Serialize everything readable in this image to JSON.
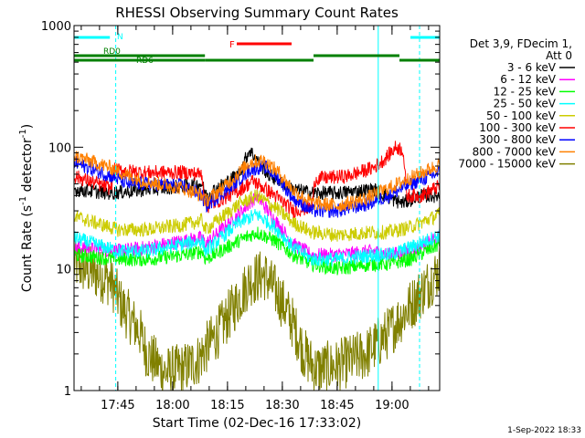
{
  "chart_data": {
    "type": "line",
    "title": "RHESSI Observing Summary Count Rates",
    "xlabel": "Start Time (02-Dec-16 17:33:02)",
    "ylabel_main": "Count Rate (s",
    "ylabel_sup1": "-1",
    "ylabel_mid": " detector",
    "ylabel_sup2": "-1",
    "ylabel_end": ")",
    "yscale": "log",
    "ylim": [
      1,
      1000
    ],
    "xlim_minutes": [
      0,
      100
    ],
    "yticks": [
      {
        "value": 1,
        "label": "1"
      },
      {
        "value": 10,
        "label": "10"
      },
      {
        "value": 100,
        "label": "100"
      },
      {
        "value": 1000,
        "label": "1000"
      }
    ],
    "xticks": [
      {
        "minute": 11.97,
        "label": "17:45"
      },
      {
        "minute": 26.97,
        "label": "18:00"
      },
      {
        "minute": 41.97,
        "label": "18:15"
      },
      {
        "minute": 56.97,
        "label": "18:30"
      },
      {
        "minute": 71.97,
        "label": "18:45"
      },
      {
        "minute": 86.97,
        "label": "19:00"
      }
    ],
    "legend_header": [
      "Det 3,9, FDecim 1,",
      "Att 0"
    ],
    "series": [
      {
        "name": "3 - 6 keV",
        "color": "#000000",
        "profile": [
          [
            0,
            45
          ],
          [
            10,
            42
          ],
          [
            20,
            45
          ],
          [
            30,
            48
          ],
          [
            35,
            50
          ],
          [
            36,
            40
          ],
          [
            45,
            60
          ],
          [
            48,
            95
          ],
          [
            53,
            60
          ],
          [
            60,
            45
          ],
          [
            65,
            42
          ],
          [
            72,
            42
          ],
          [
            82,
            45
          ],
          [
            85,
            40
          ],
          [
            88,
            36
          ],
          [
            90,
            35
          ],
          [
            95,
            40
          ],
          [
            100,
            40
          ]
        ]
      },
      {
        "name": "6 - 12 keV",
        "color": "#ff00ff",
        "profile": [
          [
            0,
            15
          ],
          [
            12,
            14
          ],
          [
            20,
            15
          ],
          [
            30,
            17
          ],
          [
            35,
            18
          ],
          [
            36,
            16
          ],
          [
            45,
            28
          ],
          [
            50,
            40
          ],
          [
            55,
            25
          ],
          [
            60,
            16
          ],
          [
            65,
            13
          ],
          [
            72,
            13
          ],
          [
            82,
            14
          ],
          [
            86,
            13
          ],
          [
            92,
            14
          ],
          [
            100,
            18
          ]
        ]
      },
      {
        "name": "12 - 25 keV",
        "color": "#00ff00",
        "profile": [
          [
            0,
            13
          ],
          [
            12,
            12
          ],
          [
            20,
            12
          ],
          [
            30,
            13
          ],
          [
            35,
            14
          ],
          [
            36,
            12
          ],
          [
            45,
            17
          ],
          [
            50,
            20
          ],
          [
            55,
            17
          ],
          [
            60,
            13
          ],
          [
            65,
            11
          ],
          [
            72,
            10
          ],
          [
            82,
            11
          ],
          [
            86,
            11
          ],
          [
            92,
            12
          ],
          [
            100,
            16
          ]
        ]
      },
      {
        "name": "25 - 50 keV",
        "color": "#00ffff",
        "profile": [
          [
            0,
            18
          ],
          [
            12,
            14
          ],
          [
            20,
            14
          ],
          [
            30,
            16
          ],
          [
            35,
            17
          ],
          [
            36,
            14
          ],
          [
            45,
            24
          ],
          [
            50,
            28
          ],
          [
            55,
            22
          ],
          [
            60,
            15
          ],
          [
            65,
            12
          ],
          [
            72,
            12
          ],
          [
            82,
            13
          ],
          [
            86,
            13
          ],
          [
            92,
            15
          ],
          [
            100,
            19
          ]
        ]
      },
      {
        "name": "50 - 100 keV",
        "color": "#cccc00",
        "profile": [
          [
            0,
            27
          ],
          [
            12,
            21
          ],
          [
            20,
            21
          ],
          [
            30,
            23
          ],
          [
            35,
            25
          ],
          [
            36,
            21
          ],
          [
            45,
            34
          ],
          [
            50,
            40
          ],
          [
            55,
            32
          ],
          [
            60,
            24
          ],
          [
            65,
            20
          ],
          [
            72,
            19
          ],
          [
            82,
            20
          ],
          [
            86,
            20
          ],
          [
            92,
            22
          ],
          [
            100,
            28
          ]
        ]
      },
      {
        "name": "100 - 300 keV",
        "color": "#ff0000",
        "profile": [
          [
            0,
            58
          ],
          [
            10,
            46
          ],
          [
            11,
            65
          ],
          [
            20,
            62
          ],
          [
            30,
            62
          ],
          [
            35,
            60
          ],
          [
            36,
            32
          ],
          [
            45,
            44
          ],
          [
            49,
            53
          ],
          [
            55,
            40
          ],
          [
            60,
            30
          ],
          [
            65,
            32
          ],
          [
            66,
            55
          ],
          [
            75,
            58
          ],
          [
            82,
            68
          ],
          [
            85,
            80
          ],
          [
            88,
            100
          ],
          [
            90,
            95
          ],
          [
            91,
            40
          ],
          [
            95,
            40
          ],
          [
            100,
            48
          ]
        ]
      },
      {
        "name": "300 - 800 keV",
        "color": "#0000ff",
        "profile": [
          [
            0,
            75
          ],
          [
            10,
            58
          ],
          [
            15,
            50
          ],
          [
            20,
            50
          ],
          [
            30,
            48
          ],
          [
            35,
            40
          ],
          [
            36,
            33
          ],
          [
            42,
            45
          ],
          [
            48,
            65
          ],
          [
            52,
            70
          ],
          [
            56,
            55
          ],
          [
            60,
            38
          ],
          [
            65,
            30
          ],
          [
            72,
            30
          ],
          [
            80,
            34
          ],
          [
            86,
            40
          ],
          [
            92,
            50
          ],
          [
            100,
            62
          ]
        ]
      },
      {
        "name": "800 - 7000 keV",
        "color": "#ff8000",
        "profile": [
          [
            0,
            85
          ],
          [
            10,
            68
          ],
          [
            15,
            58
          ],
          [
            20,
            52
          ],
          [
            30,
            46
          ],
          [
            35,
            40
          ],
          [
            36,
            36
          ],
          [
            42,
            50
          ],
          [
            48,
            75
          ],
          [
            52,
            78
          ],
          [
            56,
            62
          ],
          [
            60,
            44
          ],
          [
            65,
            35
          ],
          [
            72,
            33
          ],
          [
            80,
            38
          ],
          [
            86,
            46
          ],
          [
            92,
            56
          ],
          [
            100,
            72
          ]
        ]
      },
      {
        "name": "7000 - 15000 keV",
        "color": "#808000",
        "profile": [
          [
            0,
            11
          ],
          [
            10,
            8
          ],
          [
            13,
            5
          ],
          [
            18,
            3
          ],
          [
            20,
            2
          ],
          [
            25,
            1.4
          ],
          [
            30,
            1.5
          ],
          [
            34,
            1.8
          ],
          [
            36,
            2.2
          ],
          [
            40,
            3.2
          ],
          [
            44,
            5
          ],
          [
            48,
            8
          ],
          [
            52,
            9
          ],
          [
            56,
            6
          ],
          [
            60,
            3.5
          ],
          [
            63,
            2
          ],
          [
            66,
            1.5
          ],
          [
            72,
            1.6
          ],
          [
            80,
            2
          ],
          [
            86,
            3
          ],
          [
            92,
            5
          ],
          [
            96,
            7
          ],
          [
            100,
            10
          ]
        ]
      }
    ],
    "attenuator_cyan_segments": [
      [
        0,
        9.8
      ],
      [
        92,
        100
      ]
    ],
    "cyan_marker_labels": [
      {
        "minute": 11,
        "label": "N"
      }
    ],
    "flare_segment": {
      "range": [
        44.5,
        59.5
      ],
      "label": "F",
      "label_minute": 42.5
    },
    "rd_segments": [
      {
        "row": 1,
        "ranges": [
          [
            0,
            35.8
          ],
          [
            65.5,
            89
          ]
        ]
      },
      {
        "row": 1,
        "ranges": [
          [
            35.8,
            65.5
          ],
          [
            89,
            100
          ]
        ]
      },
      {
        "row": 2,
        "ranges": [
          [
            0,
            17.5
          ],
          [
            17.5,
            35.8
          ]
        ]
      }
    ],
    "rd_labels": [
      {
        "minute": 8,
        "row": 0,
        "label": "RD0"
      },
      {
        "minute": 17,
        "row": 1,
        "label": "RD6"
      }
    ],
    "cyan_vertical_lines": [
      {
        "minute": 0,
        "style": "solid"
      },
      {
        "minute": 11.4,
        "style": "dashed"
      },
      {
        "minute": 83.2,
        "style": "solid"
      },
      {
        "minute": 94.5,
        "style": "dashed"
      }
    ],
    "grid": false,
    "legend_position": "right"
  },
  "footer": {
    "timestamp": "1-Sep-2022 18:33"
  }
}
